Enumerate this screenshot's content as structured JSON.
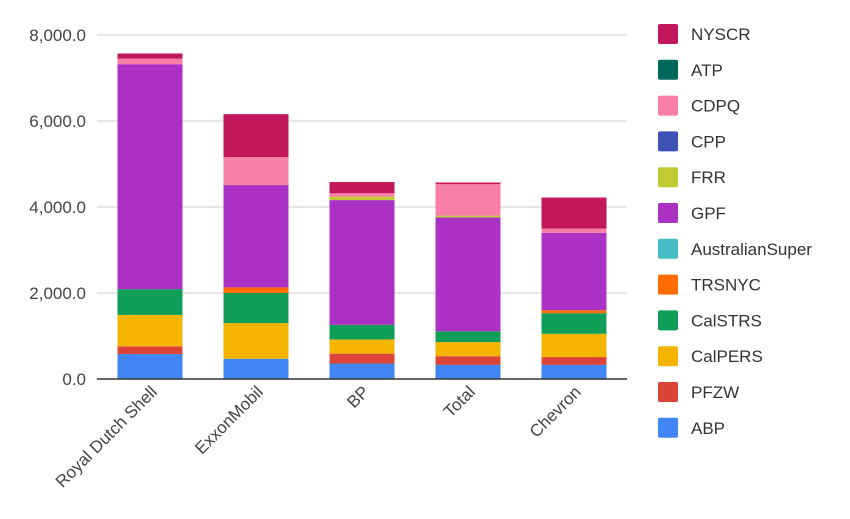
{
  "chart_data": {
    "type": "bar",
    "stacked": true,
    "categories": [
      "Royal Dutch Shell",
      "ExxonMobil",
      "BP",
      "Total",
      "Chevron"
    ],
    "ylim": [
      0,
      8000
    ],
    "yticks": [
      0,
      2000,
      4000,
      6000,
      8000
    ],
    "ytick_labels": [
      "0.0",
      "2,000.0",
      "4,000.0",
      "6,000.0",
      "8,000.0"
    ],
    "grid": true,
    "legend_position": "right",
    "series": [
      {
        "name": "ABP",
        "color": "#4285F4",
        "values": [
          580,
          470,
          360,
          330,
          330
        ]
      },
      {
        "name": "PFZW",
        "color": "#DB4437",
        "values": [
          180,
          0,
          230,
          200,
          180
        ]
      },
      {
        "name": "CalPERS",
        "color": "#F4B400",
        "values": [
          730,
          830,
          330,
          330,
          540
        ]
      },
      {
        "name": "CalSTRS",
        "color": "#0F9D58",
        "values": [
          600,
          700,
          340,
          250,
          480
        ]
      },
      {
        "name": "TRSNYC",
        "color": "#FF6D00",
        "values": [
          0,
          130,
          0,
          0,
          70
        ]
      },
      {
        "name": "AustralianSuper",
        "color": "#46BDC6",
        "values": [
          0,
          0,
          0,
          0,
          0
        ]
      },
      {
        "name": "GPF",
        "color": "#AB30C4",
        "values": [
          5230,
          2380,
          2900,
          2650,
          1800
        ]
      },
      {
        "name": "FRR",
        "color": "#C0CA33",
        "values": [
          0,
          0,
          80,
          40,
          0
        ]
      },
      {
        "name": "CPP",
        "color": "#3F51B5",
        "values": [
          0,
          0,
          0,
          0,
          0
        ]
      },
      {
        "name": "CDPQ",
        "color": "#F77FA8",
        "values": [
          130,
          650,
          80,
          730,
          100
        ]
      },
      {
        "name": "ATP",
        "color": "#00695C",
        "values": [
          0,
          0,
          0,
          0,
          0
        ]
      },
      {
        "name": "NYSCR",
        "color": "#C2185B",
        "values": [
          120,
          1000,
          260,
          40,
          720
        ]
      }
    ]
  }
}
